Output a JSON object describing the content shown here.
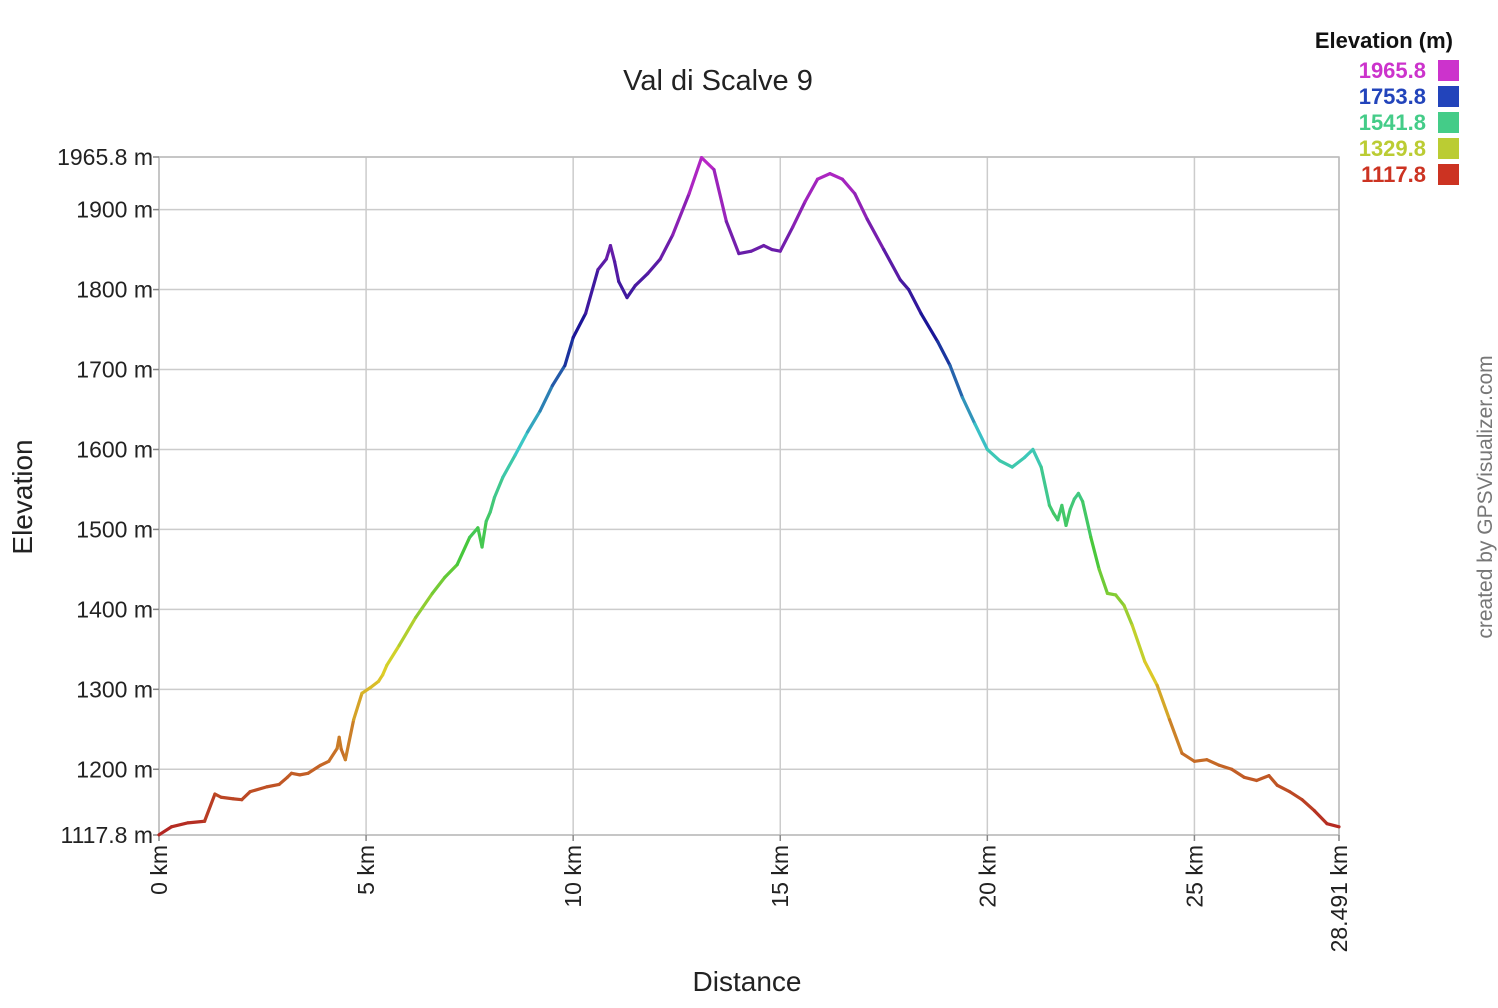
{
  "chart_data": {
    "type": "line",
    "title": "Val di Scalve 9",
    "xlabel": "Distance",
    "ylabel": "Elevation",
    "xlim": [
      0,
      28.491
    ],
    "ylim": [
      1117.8,
      1965.8
    ],
    "grid": true,
    "x_ticks": [
      {
        "value": 0,
        "label": "0 km"
      },
      {
        "value": 5,
        "label": "5 km"
      },
      {
        "value": 10,
        "label": "10 km"
      },
      {
        "value": 15,
        "label": "15 km"
      },
      {
        "value": 20,
        "label": "20 km"
      },
      {
        "value": 25,
        "label": "25 km"
      },
      {
        "value": 28.491,
        "label": "28.491 km"
      }
    ],
    "y_ticks": [
      {
        "value": 1117.8,
        "label": "1117.8 m"
      },
      {
        "value": 1200,
        "label": "1200 m"
      },
      {
        "value": 1300,
        "label": "1300 m"
      },
      {
        "value": 1400,
        "label": "1400 m"
      },
      {
        "value": 1500,
        "label": "1500 m"
      },
      {
        "value": 1600,
        "label": "1600 m"
      },
      {
        "value": 1700,
        "label": "1700 m"
      },
      {
        "value": 1800,
        "label": "1800 m"
      },
      {
        "value": 1900,
        "label": "1900 m"
      },
      {
        "value": 1965.8,
        "label": "1965.8 m"
      }
    ],
    "legend": {
      "title": "Elevation (m)",
      "position": "top-right",
      "entries": [
        {
          "label": "1965.8",
          "color": "#cc33cc"
        },
        {
          "label": "1753.8",
          "color": "#2244bb"
        },
        {
          "label": "1541.8",
          "color": "#44cc88"
        },
        {
          "label": "1329.8",
          "color": "#bbcc33"
        },
        {
          "label": "1117.8",
          "color": "#cc3322"
        }
      ]
    },
    "series": [
      {
        "x": [
          0,
          0.3,
          0.7,
          1.1,
          1.35,
          1.5,
          1.8,
          2.0,
          2.2,
          2.6,
          2.9,
          3.1,
          3.2,
          3.4,
          3.6,
          3.9,
          4.1,
          4.3,
          4.35,
          4.4,
          4.5,
          4.7,
          4.9,
          5.1,
          5.3,
          5.4,
          5.5,
          5.8,
          6.2,
          6.6,
          6.9,
          7.2,
          7.5,
          7.7,
          7.8,
          7.9,
          8.0,
          8.1,
          8.3,
          8.6,
          8.9,
          9.2,
          9.5,
          9.8,
          10.0,
          10.3,
          10.6,
          10.8,
          10.9,
          11.0,
          11.1,
          11.3,
          11.5,
          11.8,
          12.1,
          12.4,
          12.8,
          13.1,
          13.4,
          13.7,
          14.0,
          14.3,
          14.6,
          14.8,
          15.0,
          15.3,
          15.6,
          15.9,
          16.2,
          16.5,
          16.8,
          17.1,
          17.5,
          17.9,
          18.1,
          18.4,
          18.8,
          19.1,
          19.4,
          19.7,
          20.0,
          20.3,
          20.6,
          20.9,
          21.1,
          21.3,
          21.5,
          21.6,
          21.7,
          21.8,
          21.9,
          22.0,
          22.1,
          22.2,
          22.3,
          22.5,
          22.7,
          22.9,
          23.1,
          23.3,
          23.5,
          23.8,
          24.1,
          24.4,
          24.7,
          25.0,
          25.3,
          25.6,
          25.9,
          26.2,
          26.5,
          26.8,
          27.0,
          27.3,
          27.6,
          27.9,
          28.2,
          28.491
        ],
        "y": [
          1118,
          1128,
          1133,
          1135,
          1169,
          1165,
          1163,
          1162,
          1172,
          1178,
          1181,
          1190,
          1195,
          1193,
          1195,
          1205,
          1210,
          1226,
          1240,
          1225,
          1212,
          1262,
          1295,
          1302,
          1310,
          1318,
          1330,
          1355,
          1390,
          1420,
          1440,
          1456,
          1490,
          1502,
          1478,
          1510,
          1522,
          1540,
          1565,
          1593,
          1622,
          1648,
          1680,
          1705,
          1740,
          1770,
          1825,
          1838,
          1855,
          1835,
          1810,
          1790,
          1805,
          1820,
          1838,
          1868,
          1920,
          1965,
          1950,
          1885,
          1845,
          1848,
          1855,
          1850,
          1848,
          1878,
          1910,
          1938,
          1945,
          1938,
          1920,
          1888,
          1850,
          1812,
          1800,
          1770,
          1735,
          1705,
          1665,
          1632,
          1600,
          1586,
          1578,
          1590,
          1600,
          1578,
          1530,
          1520,
          1512,
          1530,
          1505,
          1525,
          1538,
          1545,
          1535,
          1490,
          1450,
          1420,
          1418,
          1405,
          1380,
          1335,
          1305,
          1262,
          1220,
          1210,
          1212,
          1205,
          1200,
          1190,
          1186,
          1192,
          1180,
          1172,
          1162,
          1148,
          1132,
          1128
        ]
      }
    ]
  },
  "credit": "created by GPSVisualizer.com"
}
